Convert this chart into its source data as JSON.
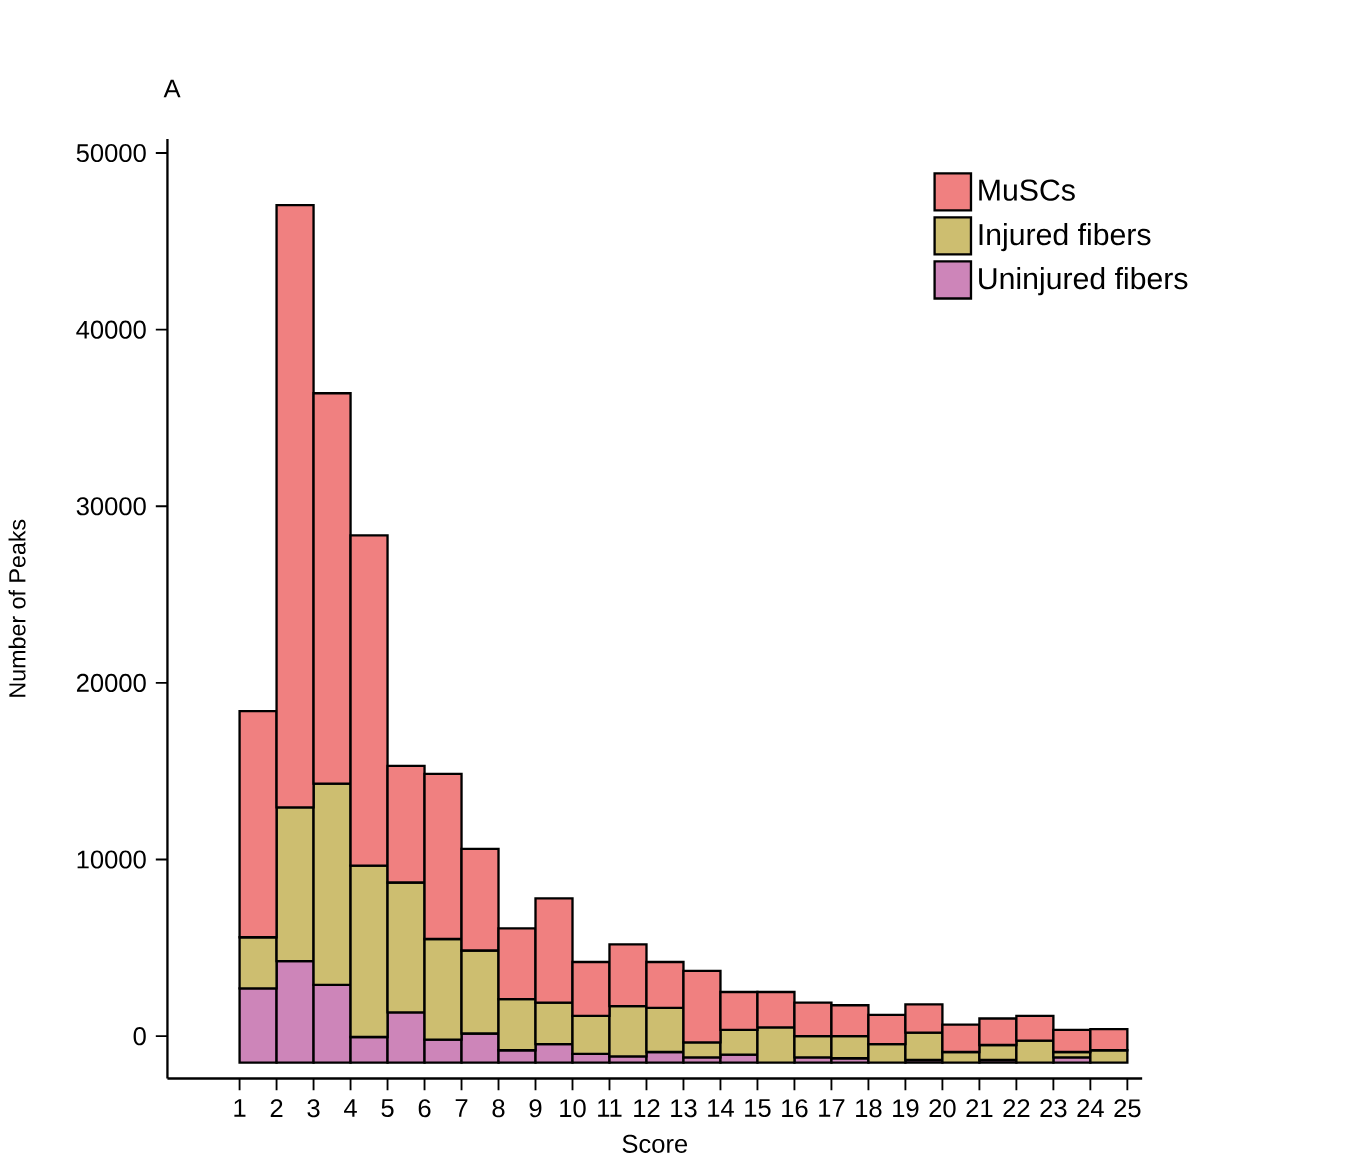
{
  "chart_data": {
    "type": "histogram",
    "title": "A",
    "xlabel": "Score",
    "ylabel": "Number of Peaks",
    "bins": [
      1,
      2,
      3,
      4,
      5,
      6,
      7,
      8,
      9,
      10,
      11,
      12,
      13,
      14,
      15,
      16,
      17,
      18,
      19,
      20,
      21,
      22,
      23,
      24,
      25
    ],
    "series": [
      {
        "name": "Uninjured fibers",
        "color": "#cd85b9",
        "base": [
          -1500,
          -1500,
          -1500,
          -1500,
          -1500,
          -1500,
          -1500,
          -1500,
          -1500,
          -1500,
          -1500,
          -1500,
          -1500,
          -1500,
          null,
          -1500,
          -1500,
          null,
          -1500,
          null,
          -1500,
          null,
          -1500,
          null
        ],
        "values": [
          4200,
          5750,
          4400,
          1450,
          2850,
          1300,
          1650,
          700,
          1050,
          500,
          350,
          600,
          300,
          450,
          null,
          300,
          250,
          null,
          150,
          null,
          150,
          null,
          300,
          null
        ]
      },
      {
        "name": "Injured fibers",
        "color": "#cdbe70",
        "base": [
          2700,
          4250,
          2900,
          -50,
          1350,
          -200,
          150,
          -800,
          -450,
          -1000,
          -1150,
          -900,
          -1200,
          -1050,
          -1500,
          -1200,
          -1250,
          -1500,
          -1350,
          -1500,
          -1350,
          -1500,
          -1200,
          -1500
        ],
        "values": [
          2900,
          8700,
          11400,
          9700,
          7350,
          5700,
          4700,
          2900,
          2350,
          2150,
          2850,
          2500,
          850,
          1400,
          2000,
          1200,
          1250,
          1050,
          1550,
          600,
          850,
          1250,
          300,
          700
        ]
      },
      {
        "name": "MuSCs",
        "color": "#f08080",
        "base": [
          5600,
          12950,
          14300,
          9650,
          8700,
          5500,
          4850,
          2100,
          1900,
          1150,
          1700,
          1600,
          -350,
          350,
          500,
          0,
          0,
          -450,
          200,
          -900,
          -500,
          -250,
          -900,
          -800
        ],
        "values": [
          12800,
          34100,
          22100,
          18700,
          6600,
          9350,
          5750,
          4000,
          5900,
          3050,
          3500,
          2600,
          4050,
          2150,
          2000,
          1900,
          1750,
          1650,
          1600,
          1550,
          1500,
          1400,
          1250,
          1200
        ]
      }
    ],
    "xlim": [
      -0.95,
      25.4
    ],
    "xticks": [
      1,
      2,
      3,
      4,
      5,
      6,
      7,
      8,
      9,
      10,
      11,
      12,
      13,
      14,
      15,
      16,
      17,
      18,
      19,
      20,
      21,
      22,
      23,
      24,
      25
    ],
    "ylim": [
      -2400,
      50800
    ],
    "yticks": [
      0,
      10000,
      20000,
      30000,
      40000,
      50000
    ],
    "legend": "top right"
  }
}
